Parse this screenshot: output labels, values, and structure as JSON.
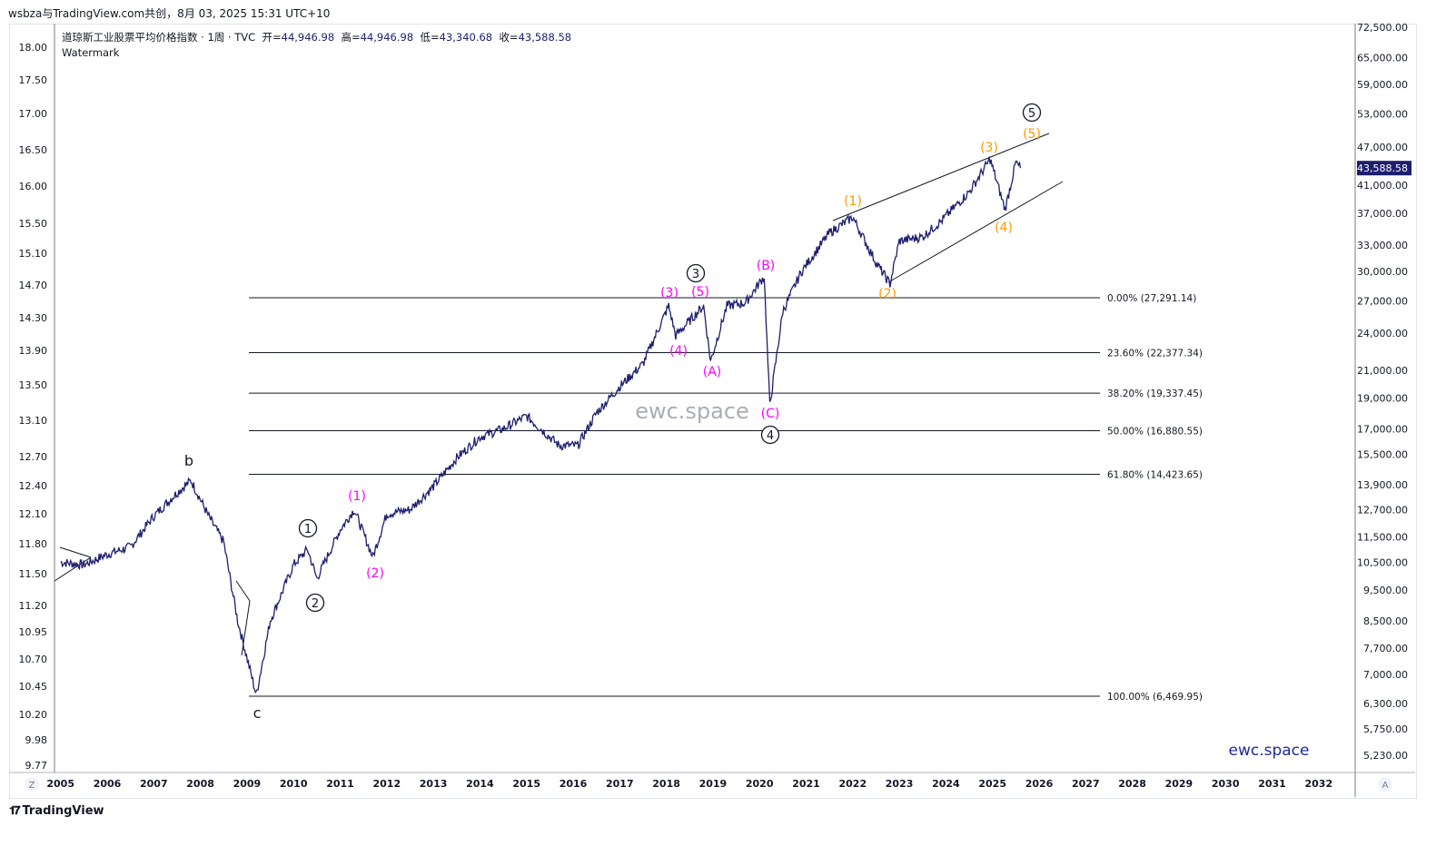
{
  "header": {
    "credit": "wsbza与TradingView.com共创，8月 03, 2025 15:31 UTC+10"
  },
  "legend": {
    "symbol": "道琼斯工业股票平均价格指数 · 1周 · TVC",
    "open_label": "开=",
    "open": "44,946.98",
    "high_label": "高=",
    "high": "44,946.98",
    "low_label": "低=",
    "low": "43,340.68",
    "close_label": "收=",
    "close": "43,588.58",
    "watermark": "Watermark"
  },
  "colors": {
    "price": "#1e1e6e",
    "wave_minor": "#ff00ff",
    "wave_orange": "#ff9800",
    "black": "#131722",
    "brand": "#1e2a9e"
  },
  "chart_data": {
    "type": "line",
    "title": "道琼斯工业股票平均价格指数 · 1周 · TVC",
    "yscale": "log",
    "ylim": [
      5000,
      75000
    ],
    "xlim": [
      2005,
      2033
    ],
    "series": [
      {
        "name": "DJI weekly (approx.)",
        "x": [
          2005.0,
          2005.5,
          2006.0,
          2006.5,
          2007.0,
          2007.5,
          2007.8,
          2008.2,
          2008.5,
          2008.8,
          2009.2,
          2009.5,
          2010.0,
          2010.3,
          2010.5,
          2011.0,
          2011.3,
          2011.7,
          2012.0,
          2012.5,
          2013.0,
          2013.5,
          2014.0,
          2014.5,
          2015.0,
          2015.7,
          2016.1,
          2016.5,
          2017.0,
          2017.5,
          2018.05,
          2018.2,
          2018.8,
          2018.95,
          2019.3,
          2019.7,
          2020.1,
          2020.22,
          2020.5,
          2020.9,
          2021.5,
          2022.0,
          2022.5,
          2022.8,
          2023.0,
          2023.5,
          2023.9,
          2024.5,
          2024.95,
          2025.27,
          2025.5,
          2025.6
        ],
        "values": [
          10500,
          10400,
          10800,
          11100,
          12400,
          13500,
          14100,
          12300,
          11300,
          8500,
          6500,
          8500,
          10400,
          11000,
          9900,
          11800,
          12700,
          10700,
          12500,
          12700,
          13800,
          15300,
          16500,
          17000,
          17800,
          16000,
          16000,
          18000,
          19800,
          21500,
          26500,
          23800,
          26500,
          21700,
          26500,
          26800,
          29500,
          18500,
          26000,
          30000,
          34500,
          36500,
          31000,
          28700,
          33500,
          34000,
          36000,
          40000,
          45000,
          37500,
          44500,
          43588.58
        ]
      }
    ],
    "right_axis": [
      "72,500.00",
      "65,000.00",
      "59,000.00",
      "53,000.00",
      "47,000.00",
      "41,000.00",
      "37,000.00",
      "33,000.00",
      "30,000.00",
      "27,000.00",
      "24,000.00",
      "21,000.00",
      "19,000.00",
      "17,000.00",
      "15,500.00",
      "13,900.00",
      "12,700.00",
      "11,500.00",
      "10,500.00",
      "9,500.00",
      "8,500.00",
      "7,700.00",
      "7,000.00",
      "6,300.00",
      "5,750.00",
      "5,230.00"
    ],
    "last_price": "43,588.58",
    "left_axis": [
      "18.00",
      "17.50",
      "17.00",
      "16.50",
      "16.00",
      "15.50",
      "15.10",
      "14.70",
      "14.30",
      "13.90",
      "13.50",
      "13.10",
      "12.70",
      "12.40",
      "12.10",
      "11.80",
      "11.50",
      "11.20",
      "10.95",
      "10.70",
      "10.45",
      "10.20",
      "9.98",
      "9.77"
    ],
    "x_ticks": [
      "2005",
      "2006",
      "2007",
      "2008",
      "2009",
      "2010",
      "2011",
      "2012",
      "2013",
      "2014",
      "2015",
      "2016",
      "2017",
      "2018",
      "2019",
      "2020",
      "2021",
      "2022",
      "2023",
      "2024",
      "2025",
      "2026",
      "2027",
      "2028",
      "2029",
      "2030",
      "2031",
      "2032"
    ],
    "fib_levels": [
      {
        "value": 27291.14,
        "label": "0.00% (27,291.14)"
      },
      {
        "value": 22377.34,
        "label": "23.60% (22,377.34)"
      },
      {
        "value": 19337.45,
        "label": "38.20% (19,337.45)"
      },
      {
        "value": 16880.55,
        "label": "50.00% (16,880.55)"
      },
      {
        "value": 14423.65,
        "label": "61.80% (14,423.65)"
      },
      {
        "value": 6469.95,
        "label": "100.00% (6,469.95)"
      }
    ],
    "wave_labels": [
      {
        "text": "b",
        "color": "black"
      },
      {
        "text": "c",
        "color": "black"
      },
      {
        "text": "1",
        "color": "circle"
      },
      {
        "text": "2",
        "color": "circle"
      },
      {
        "text": "3",
        "color": "circle"
      },
      {
        "text": "4",
        "color": "circle"
      },
      {
        "text": "5",
        "color": "circle"
      },
      {
        "text": "(1)",
        "color": "magenta"
      },
      {
        "text": "(2)",
        "color": "magenta"
      },
      {
        "text": "(3)",
        "color": "magenta"
      },
      {
        "text": "(4)",
        "color": "magenta"
      },
      {
        "text": "(5)",
        "color": "magenta"
      },
      {
        "text": "(A)",
        "color": "magenta"
      },
      {
        "text": "(B)",
        "color": "magenta"
      },
      {
        "text": "(C)",
        "color": "magenta"
      },
      {
        "text": "(1)",
        "color": "orange"
      },
      {
        "text": "(2)",
        "color": "orange"
      },
      {
        "text": "(3)",
        "color": "orange"
      },
      {
        "text": "(4)",
        "color": "orange"
      },
      {
        "text": "(5)",
        "color": "orange"
      }
    ]
  },
  "watermark_center": "ewc.space",
  "brand_text": "ewc.space",
  "axis_buttons": {
    "left": "Z",
    "right": "A"
  },
  "footer": {
    "logo": "TradingView"
  }
}
